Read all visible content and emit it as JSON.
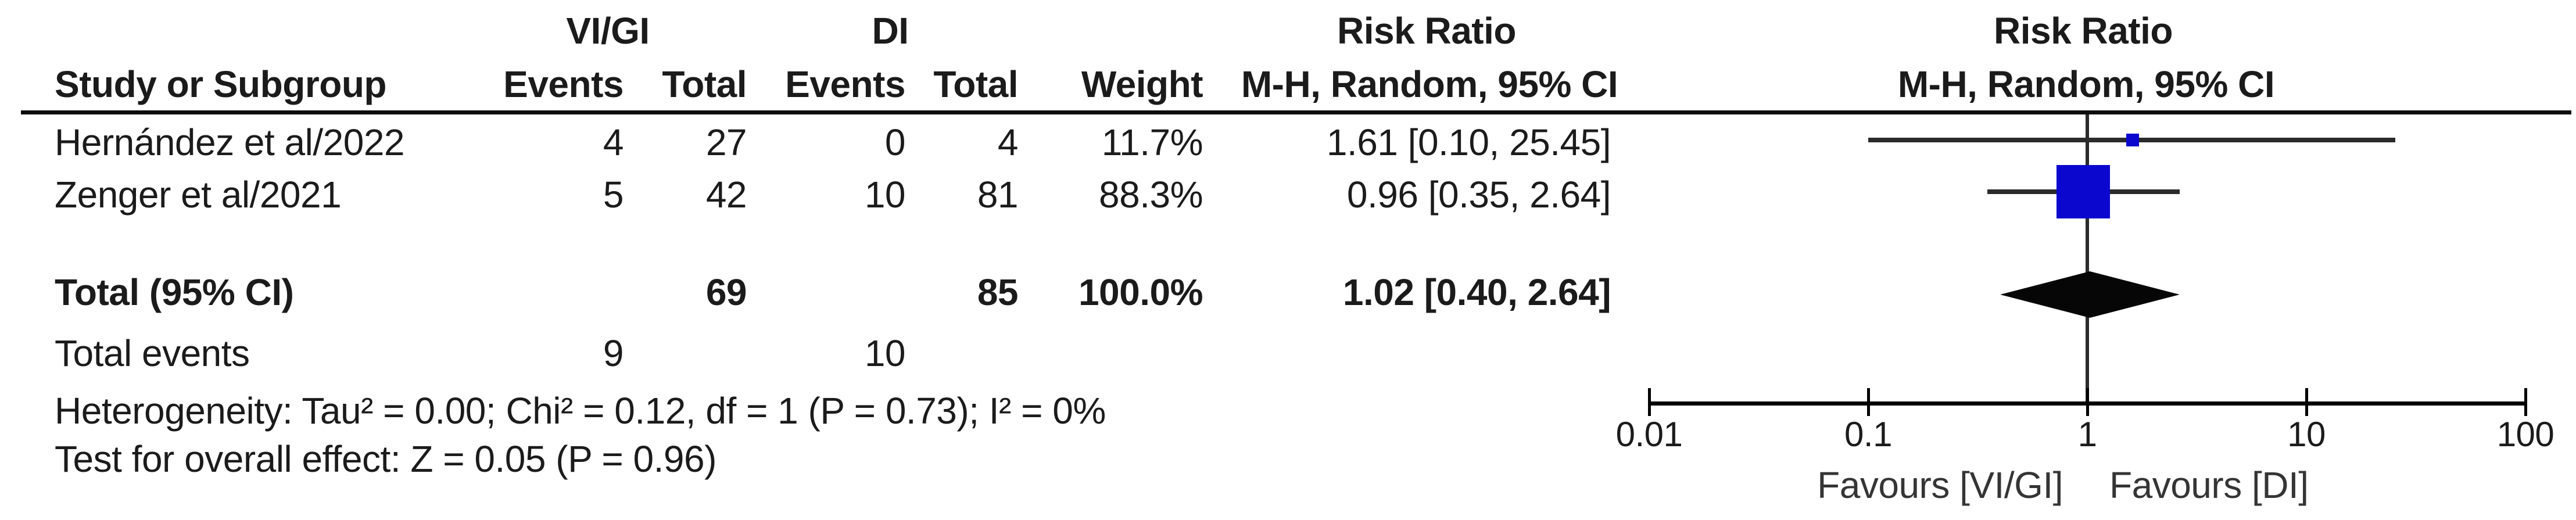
{
  "header": {
    "group1": "VI/GI",
    "group2": "DI",
    "risk_ratio_left": "Risk Ratio",
    "risk_ratio_right": "Risk Ratio",
    "col_study": "Study or Subgroup",
    "col_events1": "Events",
    "col_total1": "Total",
    "col_events2": "Events",
    "col_total2": "Total",
    "col_weight": "Weight",
    "method_left": "M-H, Random, 95% CI",
    "method_right": "M-H, Random, 95% CI"
  },
  "table": {
    "rows": [
      {
        "study": "Hernández et al/2022",
        "e1": "4",
        "t1": "27",
        "e2": "0",
        "t2": "4",
        "weight": "11.7%",
        "rr": "1.61 [0.10, 25.45]"
      },
      {
        "study": "Zenger et al/2021",
        "e1": "5",
        "t1": "42",
        "e2": "10",
        "t2": "81",
        "weight": "88.3%",
        "rr": "0.96 [0.35, 2.64]"
      }
    ],
    "total": {
      "label": "Total (95% CI)",
      "t1": "69",
      "t2": "85",
      "weight": "100.0%",
      "rr": "1.02 [0.40, 2.64]"
    },
    "total_events": {
      "label": "Total events",
      "e1": "9",
      "e2": "10"
    },
    "heterogeneity": "Heterogeneity: Tau² = 0.00; Chi² = 0.12, df = 1 (P = 0.73); I² = 0%",
    "overall_effect": "Test for overall effect: Z = 0.05 (P = 0.96)"
  },
  "chart_data": {
    "type": "forest",
    "x_scale": "log10",
    "x_range": [
      0.01,
      100
    ],
    "axis_ticks": [
      0.01,
      0.1,
      1,
      10,
      100
    ],
    "tick_labels": [
      "0.01",
      "0.1",
      "1",
      "10",
      "100"
    ],
    "favours_left": "Favours [VI/GI]",
    "favours_right": "Favours [DI]",
    "studies": [
      {
        "name": "Hernández et al/2022",
        "rr": 1.61,
        "ci_low": 0.1,
        "ci_high": 25.45,
        "weight_pct": 11.7
      },
      {
        "name": "Zenger et al/2021",
        "rr": 0.96,
        "ci_low": 0.35,
        "ci_high": 2.64,
        "weight_pct": 88.3
      }
    ],
    "total": {
      "rr": 1.02,
      "ci_low": 0.4,
      "ci_high": 2.64,
      "weight_pct": 100.0
    },
    "colors": {
      "marker": "#0c07cf",
      "ci_line": "#2b2b2b",
      "diamond": "#060606",
      "axis": "#000000"
    }
  }
}
